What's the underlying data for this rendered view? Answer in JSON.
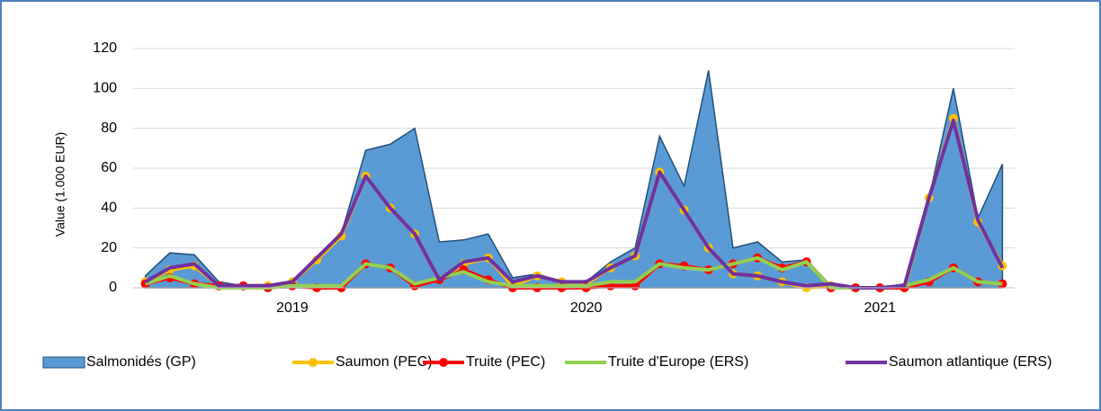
{
  "chart_data": {
    "type": "line",
    "y_label": "Value (1.000 EUR)",
    "categories": [
      null,
      null,
      null,
      null,
      null,
      null,
      "2019",
      null,
      null,
      null,
      null,
      null,
      null,
      null,
      null,
      null,
      null,
      null,
      "2020",
      null,
      null,
      null,
      null,
      null,
      null,
      null,
      null,
      null,
      null,
      null,
      "2021",
      null,
      null,
      null,
      null,
      null
    ],
    "ylim": [
      0,
      120
    ],
    "yticks": [
      0,
      20,
      40,
      60,
      80,
      100,
      120
    ],
    "grid": true,
    "legend": "bottom",
    "series": [
      {
        "name": "Salmonidés (GP)",
        "kind": "area",
        "color": "#5b9bd5",
        "edge": "#1f4e79",
        "values": [
          6,
          17.5,
          16.5,
          3,
          1,
          1,
          3,
          14,
          27,
          69,
          72,
          80,
          23,
          24,
          27,
          5,
          7,
          3,
          3,
          13,
          20,
          76,
          51,
          109,
          20,
          23,
          13,
          14,
          1,
          0,
          0,
          2,
          45,
          100,
          35,
          62
        ]
      },
      {
        "name": "Saumon (PEC)",
        "kind": "line",
        "markers": true,
        "color": "#ffc000",
        "values": [
          3,
          9,
          11,
          1,
          1,
          1,
          3,
          14,
          26,
          56,
          40,
          27,
          4,
          12,
          15,
          1,
          6,
          3,
          2,
          10,
          16,
          58,
          39,
          20,
          7,
          6,
          3,
          0,
          1,
          0,
          0,
          0,
          45,
          85,
          33,
          11
        ]
      },
      {
        "name": "Truite (PEC)",
        "kind": "line",
        "markers": true,
        "color": "#ff0000",
        "values": [
          2,
          5,
          2,
          1,
          1,
          0,
          1,
          0,
          0,
          12,
          10,
          1,
          4,
          9,
          4,
          0,
          0,
          0,
          0,
          1,
          1,
          12,
          11,
          9,
          12,
          15,
          10,
          13,
          0,
          0,
          0,
          0,
          3,
          10,
          3,
          2
        ]
      },
      {
        "name": "Truite d'Europe (ERS)",
        "kind": "line",
        "markers": false,
        "color": "#92d050",
        "values": [
          2,
          6,
          2,
          0,
          0,
          0,
          1,
          1,
          1,
          12,
          10,
          2,
          5,
          8,
          3,
          1,
          1,
          1,
          1,
          3,
          3,
          12,
          10,
          9,
          12,
          15,
          9,
          13,
          0,
          0,
          0,
          1,
          4,
          10,
          3,
          2
        ]
      },
      {
        "name": "Saumon atlantique (ERS)",
        "kind": "line",
        "markers": false,
        "color": "#7030a0",
        "values": [
          3,
          10,
          12,
          1,
          1,
          1,
          3,
          15,
          27,
          56,
          40,
          27,
          4,
          13,
          15,
          3,
          6,
          3,
          3,
          10,
          16,
          58,
          39,
          20,
          7,
          6,
          3,
          1,
          2,
          0,
          0,
          1,
          45,
          84,
          34,
          10
        ]
      }
    ]
  }
}
